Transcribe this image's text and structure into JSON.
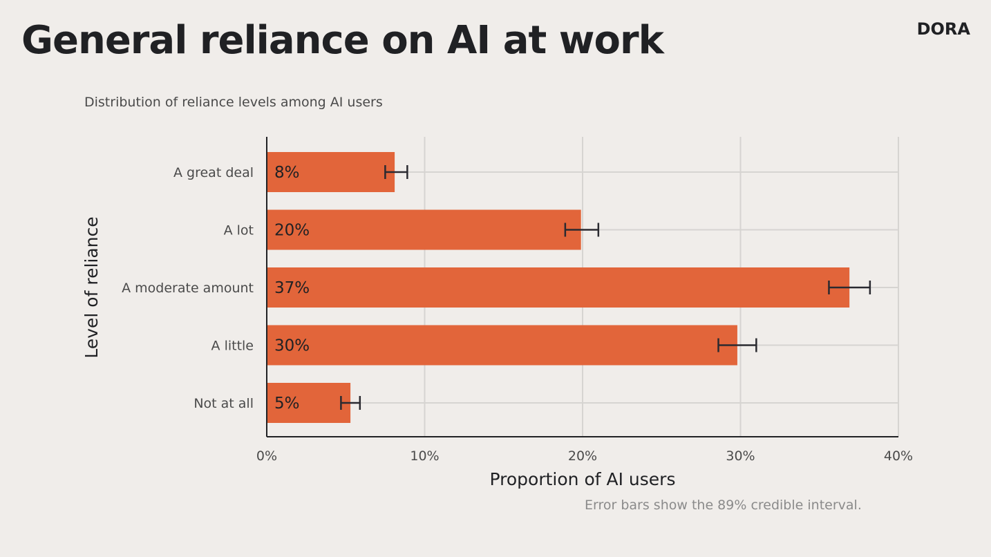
{
  "header": {
    "title": "General reliance on AI at work",
    "logo": "DORA"
  },
  "chart_data": {
    "type": "bar",
    "orientation": "horizontal",
    "subtitle": "Distribution of reliance levels among AI users",
    "xlabel": "Proportion of AI users",
    "ylabel": "Level of reliance",
    "xlim": [
      0,
      40
    ],
    "xticks": [
      0,
      10,
      20,
      30,
      40
    ],
    "xtick_labels": [
      "0%",
      "10%",
      "20%",
      "30%",
      "40%"
    ],
    "grid": true,
    "categories": [
      "A great deal",
      "A lot",
      "A moderate amount",
      "A little",
      "Not at all"
    ],
    "values": [
      8.1,
      19.9,
      36.9,
      29.8,
      5.3
    ],
    "data_labels": [
      "8%",
      "20%",
      "37%",
      "30%",
      "5%"
    ],
    "error_low": [
      7.5,
      18.9,
      35.6,
      28.6,
      4.7
    ],
    "error_high": [
      8.9,
      21.0,
      38.2,
      31.0,
      5.9
    ],
    "bar_color": "#e2653a",
    "note": "Error bars show the 89% credible interval."
  }
}
